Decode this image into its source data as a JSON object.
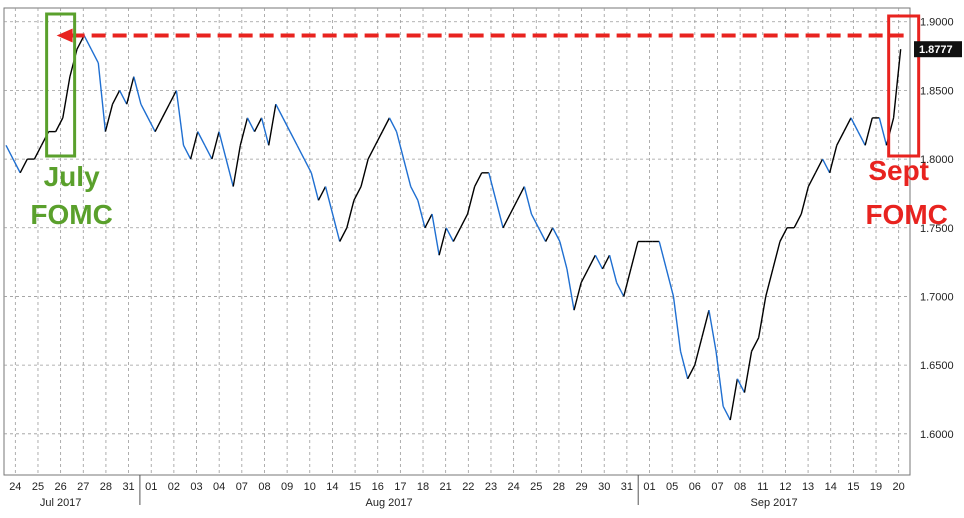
{
  "chart_data": {
    "type": "line",
    "title": "",
    "xlabel": "",
    "ylabel": "",
    "ylim": [
      1.57,
      1.91
    ],
    "yticks": [
      "1.9000",
      "1.8500",
      "1.8000",
      "1.7500",
      "1.7000",
      "1.6500",
      "1.6000"
    ],
    "ytick_values": [
      1.9,
      1.85,
      1.8,
      1.75,
      1.7,
      1.65,
      1.6
    ],
    "grid": true,
    "day_labels": [
      "24",
      "25",
      "26",
      "27",
      "28",
      "31",
      "01",
      "02",
      "03",
      "04",
      "07",
      "08",
      "09",
      "10",
      "14",
      "15",
      "16",
      "17",
      "18",
      "21",
      "22",
      "23",
      "24",
      "25",
      "28",
      "29",
      "30",
      "31",
      "01",
      "05",
      "06",
      "07",
      "08",
      "11",
      "12",
      "13",
      "14",
      "15",
      "19",
      "20"
    ],
    "month_labels": [
      "Jul 2017",
      "Aug 2017",
      "Sep 2017"
    ],
    "last_value_label": "1.8777",
    "series": [
      {
        "values": [
          1.81,
          1.8,
          1.79,
          1.8,
          1.8,
          1.81,
          1.82,
          1.82,
          1.83,
          1.86,
          1.88,
          1.89,
          1.88,
          1.87,
          1.82,
          1.84,
          1.85,
          1.84,
          1.86,
          1.84,
          1.83,
          1.82,
          1.83,
          1.84,
          1.85,
          1.81,
          1.8,
          1.82,
          1.81,
          1.8,
          1.82,
          1.8,
          1.78,
          1.81,
          1.83,
          1.82,
          1.83,
          1.81,
          1.84,
          1.83,
          1.82,
          1.81,
          1.8,
          1.79,
          1.77,
          1.78,
          1.76,
          1.74,
          1.75,
          1.77,
          1.78,
          1.8,
          1.81,
          1.82,
          1.83,
          1.82,
          1.8,
          1.78,
          1.77,
          1.75,
          1.76,
          1.73,
          1.75,
          1.74,
          1.75,
          1.76,
          1.78,
          1.79,
          1.79,
          1.77,
          1.75,
          1.76,
          1.77,
          1.78,
          1.76,
          1.75,
          1.74,
          1.75,
          1.74,
          1.72,
          1.69,
          1.71,
          1.72,
          1.73,
          1.72,
          1.73,
          1.71,
          1.7,
          1.72,
          1.74,
          1.74,
          1.74,
          1.74,
          1.72,
          1.7,
          1.66,
          1.64,
          1.65,
          1.67,
          1.69,
          1.66,
          1.62,
          1.61,
          1.64,
          1.63,
          1.66,
          1.67,
          1.7,
          1.72,
          1.74,
          1.75,
          1.75,
          1.76,
          1.78,
          1.79,
          1.8,
          1.79,
          1.81,
          1.82,
          1.83,
          1.82,
          1.81,
          1.83,
          1.83,
          1.81,
          1.83,
          1.88
        ],
        "color": "#000000"
      }
    ],
    "reference_line": {
      "y": 1.89,
      "color": "#e8231f",
      "style": "dashed-arrow"
    },
    "annotations": [
      {
        "text_lines": [
          "July",
          "FOMC"
        ],
        "color": "#5aa02c",
        "anchor_day": "26"
      },
      {
        "text_lines": [
          "Sept",
          "FOMC"
        ],
        "color": "#e8231f",
        "anchor_day": "20"
      }
    ]
  },
  "colors": {
    "grid": "#9a9a9a",
    "line": "#000000",
    "line_down": "#1f6fd1",
    "green_box": "#5aa02c",
    "red_box": "#e8231f",
    "last_label_bg": "#111111"
  }
}
